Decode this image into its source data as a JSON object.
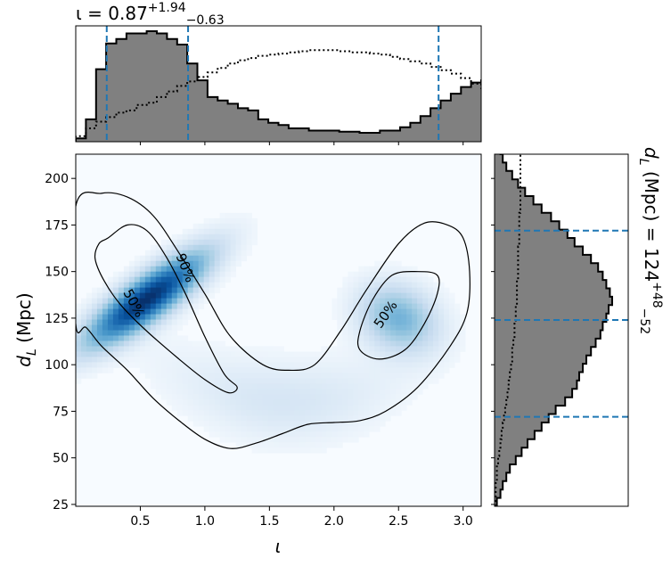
{
  "chart_data": [
    {
      "panel": "joint",
      "type": "heatmap",
      "xlabel": "ι",
      "ylabel": "d_L (Mpc)",
      "ylabel_parts": {
        "var": "d",
        "sub": "L",
        "unit": " (Mpc)"
      },
      "xlim": [
        0,
        3.14
      ],
      "ylim": [
        24,
        213
      ],
      "xticks": [
        0.5,
        1.0,
        1.5,
        2.0,
        2.5,
        3.0
      ],
      "xtick_labels": [
        "0.5",
        "1.0",
        "1.5",
        "2.0",
        "2.5",
        "3.0"
      ],
      "yticks": [
        25,
        50,
        75,
        100,
        125,
        150,
        175,
        200
      ],
      "ytick_labels": [
        "25",
        "50",
        "75",
        "100",
        "125",
        "150",
        "175",
        "200"
      ],
      "colormap": "Blues",
      "density_modes": [
        {
          "iota": 0.55,
          "dL": 135,
          "weight": 1.0
        },
        {
          "iota": 2.5,
          "dL": 125,
          "weight": 0.42
        }
      ],
      "contours": [
        {
          "level": "50%",
          "label": "50%",
          "label_at": {
            "iota": 0.45,
            "dL": 133
          }
        },
        {
          "level": "50%",
          "label": "50%",
          "label_at": {
            "iota": 2.4,
            "dL": 127
          }
        },
        {
          "level": "90%",
          "label": "90%",
          "label_at": {
            "iota": 0.85,
            "dL": 152
          }
        }
      ],
      "contour_50_left": [
        [
          0.25,
          168
        ],
        [
          0.4,
          175
        ],
        [
          0.55,
          172
        ],
        [
          0.7,
          158
        ],
        [
          0.85,
          138
        ],
        [
          1.0,
          115
        ],
        [
          1.15,
          95
        ],
        [
          1.25,
          88
        ],
        [
          1.18,
          85
        ],
        [
          1.0,
          92
        ],
        [
          0.8,
          103
        ],
        [
          0.55,
          118
        ],
        [
          0.35,
          132
        ],
        [
          0.22,
          145
        ],
        [
          0.15,
          157
        ],
        [
          0.18,
          165
        ]
      ],
      "contour_50_right": [
        [
          2.2,
          118
        ],
        [
          2.3,
          135
        ],
        [
          2.45,
          148
        ],
        [
          2.65,
          150
        ],
        [
          2.8,
          148
        ],
        [
          2.8,
          138
        ],
        [
          2.7,
          122
        ],
        [
          2.55,
          108
        ],
        [
          2.35,
          103
        ],
        [
          2.2,
          108
        ]
      ],
      "contour_90": [
        [
          0.0,
          185
        ],
        [
          0.2,
          192
        ],
        [
          0.4,
          190
        ],
        [
          0.6,
          180
        ],
        [
          0.8,
          160
        ],
        [
          1.0,
          138
        ],
        [
          1.2,
          115
        ],
        [
          1.45,
          100
        ],
        [
          1.65,
          97
        ],
        [
          1.85,
          100
        ],
        [
          2.05,
          118
        ],
        [
          2.25,
          140
        ],
        [
          2.5,
          165
        ],
        [
          2.7,
          176
        ],
        [
          2.88,
          175
        ],
        [
          3.0,
          168
        ],
        [
          3.05,
          150
        ],
        [
          3.03,
          128
        ],
        [
          2.9,
          110
        ],
        [
          2.65,
          88
        ],
        [
          2.4,
          75
        ],
        [
          2.2,
          70
        ],
        [
          2.0,
          69
        ],
        [
          1.8,
          68
        ],
        [
          1.6,
          63
        ],
        [
          1.4,
          58
        ],
        [
          1.2,
          55
        ],
        [
          1.0,
          60
        ],
        [
          0.8,
          70
        ],
        [
          0.6,
          82
        ],
        [
          0.4,
          97
        ],
        [
          0.2,
          110
        ],
        [
          0.08,
          120
        ],
        [
          0.0,
          122
        ]
      ]
    },
    {
      "panel": "top",
      "type": "histogram",
      "title_var": "ι",
      "title_value": "0.87",
      "title_plus": "+1.94",
      "title_minus": "−0.63",
      "xlim": [
        0,
        3.14
      ],
      "bin_edges_start": 0,
      "bin_width": 0.0785,
      "posterior_counts": [
        0.03,
        0.2,
        0.65,
        0.88,
        0.92,
        0.97,
        0.97,
        0.99,
        0.97,
        0.92,
        0.87,
        0.7,
        0.55,
        0.4,
        0.37,
        0.34,
        0.3,
        0.28,
        0.2,
        0.17,
        0.15,
        0.12,
        0.12,
        0.1,
        0.1,
        0.1,
        0.09,
        0.09,
        0.08,
        0.08,
        0.1,
        0.1,
        0.13,
        0.17,
        0.23,
        0.3,
        0.37,
        0.43,
        0.49,
        0.53,
        0.55,
        0.55,
        0.53,
        0.5,
        0.44,
        0.34,
        0.25,
        0.18,
        0.12,
        0.06
      ],
      "prior_counts": [
        0.05,
        0.12,
        0.18,
        0.22,
        0.26,
        0.28,
        0.33,
        0.35,
        0.4,
        0.45,
        0.5,
        0.54,
        0.58,
        0.62,
        0.66,
        0.7,
        0.73,
        0.75,
        0.77,
        0.78,
        0.79,
        0.8,
        0.81,
        0.82,
        0.82,
        0.82,
        0.81,
        0.8,
        0.8,
        0.79,
        0.78,
        0.76,
        0.74,
        0.72,
        0.7,
        0.67,
        0.64,
        0.61,
        0.57,
        0.52,
        0.48,
        0.45,
        0.42,
        0.38,
        0.34,
        0.3,
        0.26,
        0.22,
        0.17,
        0.12
      ],
      "quantile_lines": [
        0.24,
        0.87,
        2.81
      ]
    },
    {
      "panel": "right",
      "type": "histogram",
      "orientation": "horizontal",
      "side_label_parts": {
        "var": "d",
        "sub": "L",
        "unit": " (Mpc) = ",
        "value": "124",
        "plus": "+48",
        "minus": "−52"
      },
      "ylim": [
        24,
        213
      ],
      "bin_edges_start": 24,
      "bin_width": 4.5,
      "posterior_counts": [
        0.02,
        0.05,
        0.07,
        0.1,
        0.13,
        0.18,
        0.23,
        0.28,
        0.34,
        0.4,
        0.46,
        0.52,
        0.6,
        0.66,
        0.7,
        0.72,
        0.75,
        0.78,
        0.82,
        0.86,
        0.9,
        0.92,
        0.95,
        0.97,
        1.0,
        0.98,
        0.95,
        0.92,
        0.88,
        0.82,
        0.75,
        0.68,
        0.62,
        0.55,
        0.48,
        0.4,
        0.33,
        0.26,
        0.2,
        0.15,
        0.1,
        0.07,
        0.05
      ],
      "prior_counts": [
        0.01,
        0.01,
        0.01,
        0.02,
        0.02,
        0.03,
        0.04,
        0.05,
        0.06,
        0.07,
        0.08,
        0.09,
        0.1,
        0.11,
        0.12,
        0.13,
        0.14,
        0.15,
        0.15,
        0.16,
        0.17,
        0.17,
        0.18,
        0.18,
        0.19,
        0.19,
        0.19,
        0.2,
        0.2,
        0.2,
        0.2,
        0.21,
        0.21,
        0.21,
        0.21,
        0.22,
        0.22,
        0.22,
        0.22,
        0.22,
        0.22,
        0.22,
        0.22
      ],
      "quantile_lines": [
        72,
        124,
        172
      ]
    }
  ],
  "colors": {
    "hist_fill": "#808080",
    "hist_edge": "#000000",
    "quantile_line": "#1f77b4",
    "contour": "#000000"
  }
}
